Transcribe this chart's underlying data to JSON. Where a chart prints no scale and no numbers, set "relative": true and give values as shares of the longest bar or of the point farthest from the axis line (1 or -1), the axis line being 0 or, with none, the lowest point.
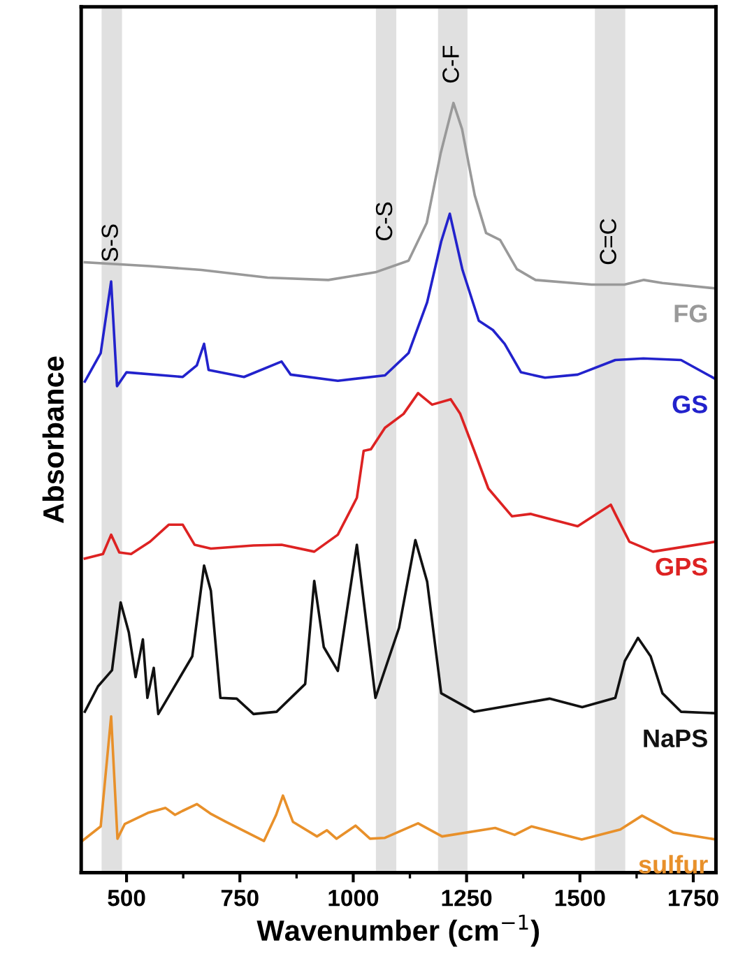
{
  "chart_data": {
    "type": "line",
    "relative": true,
    "xlabel": "Wavenumber (cm$^{−1}$)",
    "ylabel": "Absorbance",
    "xlim": [
      400,
      1800
    ],
    "xticks": [
      500,
      750,
      1000,
      1250,
      1500,
      1750
    ],
    "grid": false,
    "legend": false,
    "tick_labels": "x",
    "bands": [
      {
        "axis": "x",
        "from": 445,
        "to": 490,
        "label": "S-S",
        "color": "#e0e0e0"
      },
      {
        "axis": "x",
        "from": 1050,
        "to": 1095,
        "label": "C-S",
        "color": "#e0e0e0"
      },
      {
        "axis": "x",
        "from": 1187,
        "to": 1252,
        "label": "C-F",
        "color": "#e0e0e0"
      },
      {
        "axis": "x",
        "from": 1533,
        "to": 1600,
        "label": "C=C",
        "color": "#e0e0e0"
      }
    ],
    "series": [
      {
        "name": "FG",
        "color": "#999999",
        "x": [
          408,
          551,
          665,
          811,
          945,
          1049,
          1122,
          1162,
          1193,
          1221,
          1240,
          1268,
          1293,
          1324,
          1361,
          1402,
          1526,
          1598,
          1641,
          1682,
          1800
        ],
        "values": [
          0.793,
          0.788,
          0.783,
          0.773,
          0.77,
          0.78,
          0.795,
          0.844,
          0.935,
          1.0,
          0.966,
          0.88,
          0.831,
          0.822,
          0.784,
          0.77,
          0.764,
          0.764,
          0.77,
          0.766,
          0.759
        ]
      },
      {
        "name": "GS",
        "color": "#2222cc",
        "x": [
          408,
          443,
          466,
          479,
          500,
          624,
          655,
          671,
          681,
          759,
          842,
          862,
          966,
          1070,
          1122,
          1163,
          1194,
          1213,
          1241,
          1277,
          1308,
          1334,
          1370,
          1423,
          1495,
          1578,
          1640,
          1723,
          1800
        ],
        "values": [
          0.638,
          0.675,
          0.768,
          0.632,
          0.65,
          0.644,
          0.659,
          0.687,
          0.653,
          0.644,
          0.664,
          0.647,
          0.639,
          0.646,
          0.675,
          0.741,
          0.82,
          0.856,
          0.783,
          0.717,
          0.705,
          0.687,
          0.65,
          0.643,
          0.647,
          0.666,
          0.668,
          0.666,
          0.641
        ]
      },
      {
        "name": "GPS",
        "color": "#dd2222",
        "x": [
          408,
          448,
          466,
          484,
          510,
          552,
          593,
          624,
          650,
          686,
          780,
          842,
          914,
          966,
          1008,
          1023,
          1039,
          1070,
          1111,
          1143,
          1174,
          1215,
          1236,
          1267,
          1298,
          1350,
          1391,
          1495,
          1568,
          1578,
          1609,
          1661,
          1800
        ],
        "values": [
          0.408,
          0.414,
          0.439,
          0.416,
          0.414,
          0.43,
          0.452,
          0.452,
          0.426,
          0.421,
          0.425,
          0.426,
          0.417,
          0.439,
          0.487,
          0.548,
          0.55,
          0.578,
          0.596,
          0.623,
          0.608,
          0.615,
          0.596,
          0.548,
          0.499,
          0.463,
          0.466,
          0.45,
          0.478,
          0.466,
          0.43,
          0.417,
          0.43
        ]
      },
      {
        "name": "NaPS",
        "color": "#111111",
        "x": [
          408,
          437,
          468,
          487,
          505,
          520,
          536,
          546,
          560,
          570,
          645,
          671,
          686,
          707,
          743,
          780,
          831,
          894,
          914,
          935,
          966,
          1008,
          1049,
          1101,
          1137,
          1163,
          1194,
          1267,
          1433,
          1505,
          1578,
          1599,
          1628,
          1656,
          1682,
          1723,
          1800
        ],
        "values": [
          0.209,
          0.242,
          0.263,
          0.351,
          0.312,
          0.254,
          0.303,
          0.227,
          0.266,
          0.206,
          0.281,
          0.399,
          0.366,
          0.227,
          0.226,
          0.206,
          0.209,
          0.245,
          0.379,
          0.293,
          0.262,
          0.426,
          0.227,
          0.318,
          0.432,
          0.378,
          0.233,
          0.209,
          0.226,
          0.215,
          0.227,
          0.275,
          0.305,
          0.281,
          0.233,
          0.209,
          0.207
        ]
      },
      {
        "name": "sulfur",
        "color": "#e8902a",
        "x": [
          402,
          443,
          466,
          480,
          496,
          549,
          586,
          607,
          623,
          655,
          687,
          719,
          803,
          830,
          845,
          867,
          920,
          942,
          963,
          1005,
          1037,
          1069,
          1143,
          1196,
          1313,
          1356,
          1393,
          1504,
          1589,
          1637,
          1706,
          1800
        ],
        "values": [
          0.041,
          0.06,
          0.203,
          0.044,
          0.063,
          0.078,
          0.084,
          0.075,
          0.08,
          0.089,
          0.076,
          0.066,
          0.041,
          0.075,
          0.1,
          0.066,
          0.047,
          0.055,
          0.044,
          0.061,
          0.044,
          0.045,
          0.064,
          0.047,
          0.058,
          0.049,
          0.06,
          0.043,
          0.056,
          0.074,
          0.052,
          0.043
        ]
      }
    ]
  }
}
